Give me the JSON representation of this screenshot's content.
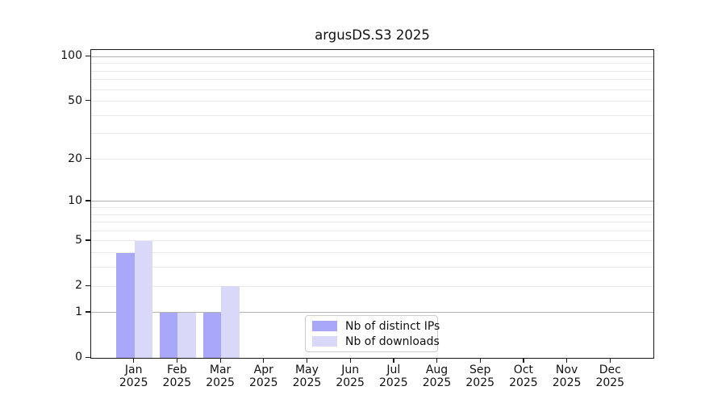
{
  "chart": {
    "title": "argusDS.S3 2025"
  },
  "chart_data": {
    "type": "bar",
    "title": "argusDS.S3 2025",
    "categories": [
      "Jan 2025",
      "Feb 2025",
      "Mar 2025",
      "Apr 2025",
      "May 2025",
      "Jun 2025",
      "Jul 2025",
      "Aug 2025",
      "Sep 2025",
      "Oct 2025",
      "Nov 2025",
      "Dec 2025"
    ],
    "series": [
      {
        "name": "Nb of distinct IPs",
        "color": "#a9a8f8",
        "values": [
          4,
          1,
          1,
          0,
          0,
          0,
          0,
          0,
          0,
          0,
          0,
          0
        ]
      },
      {
        "name": "Nb of downloads",
        "color": "#d9d8f8",
        "values": [
          5,
          1,
          2,
          0,
          0,
          0,
          0,
          0,
          0,
          0,
          0,
          0
        ]
      }
    ],
    "yscale": "log1p",
    "ylim": [
      0,
      111
    ],
    "y_tick_values": [
      0,
      1,
      2,
      5,
      10,
      20,
      50,
      100
    ],
    "y_decade_gridlines": [
      1,
      10,
      100
    ],
    "y_minor_gridlines": [
      2,
      3,
      4,
      5,
      6,
      7,
      8,
      9,
      20,
      30,
      40,
      50,
      60,
      70,
      80,
      90
    ],
    "grid": true,
    "grid_color_decade": "#b2b2b2",
    "grid_color_minor": "#e9e9e9",
    "legend_position": "lower center",
    "xlabel": "",
    "ylabel": ""
  }
}
